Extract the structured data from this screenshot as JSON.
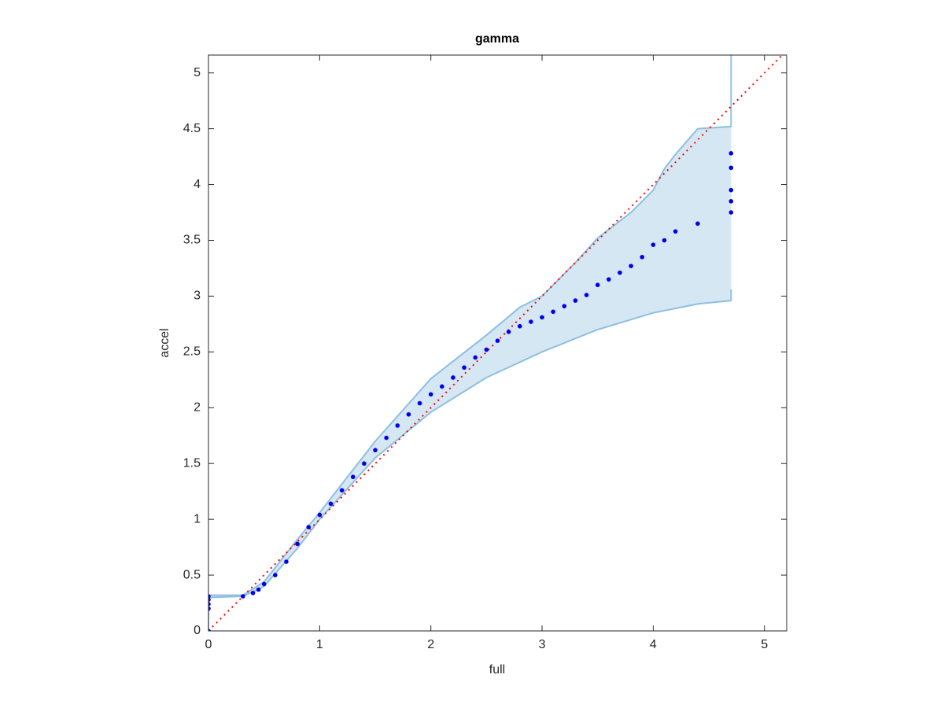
{
  "chart_data": {
    "type": "scatter",
    "title": "gamma",
    "xlabel": "full",
    "ylabel": "accel",
    "xlim": [
      0,
      5.2
    ],
    "ylim": [
      0,
      5.16
    ],
    "xticks": [
      0,
      1,
      2,
      3,
      4,
      5
    ],
    "yticks": [
      0,
      0.5,
      1,
      1.5,
      2,
      2.5,
      3,
      3.5,
      4,
      4.5,
      5
    ],
    "points": {
      "color": "#0000ee",
      "x": [
        0,
        0,
        0,
        0,
        0,
        0.31,
        0.4,
        0.45,
        0.5,
        0.6,
        0.7,
        0.8,
        0.9,
        1.0,
        1.1,
        1.2,
        1.3,
        1.4,
        1.5,
        1.6,
        1.7,
        1.8,
        1.9,
        2.0,
        2.1,
        2.2,
        2.3,
        2.4,
        2.5,
        2.6,
        2.7,
        2.8,
        2.9,
        3.0,
        3.1,
        3.2,
        3.3,
        3.4,
        3.5,
        3.6,
        3.7,
        3.8,
        3.9,
        4.0,
        4.1,
        4.2,
        4.4,
        4.7,
        4.7,
        4.7,
        4.7,
        4.7
      ],
      "y": [
        0,
        0.2,
        0.24,
        0.28,
        0.31,
        0.31,
        0.34,
        0.37,
        0.42,
        0.5,
        0.62,
        0.78,
        0.93,
        1.04,
        1.14,
        1.26,
        1.38,
        1.5,
        1.62,
        1.73,
        1.84,
        1.94,
        2.04,
        2.12,
        2.19,
        2.27,
        2.36,
        2.45,
        2.52,
        2.6,
        2.68,
        2.73,
        2.77,
        2.81,
        2.86,
        2.91,
        2.96,
        3.01,
        3.1,
        3.15,
        3.21,
        3.27,
        3.35,
        3.46,
        3.5,
        3.58,
        3.65,
        3.75,
        3.85,
        3.95,
        4.15,
        4.28
      ]
    },
    "band": {
      "color": "#8dbfe0",
      "fill": "#d6e7f4",
      "upper": {
        "x": [
          0,
          0,
          0.31,
          0.5,
          0.8,
          1.0,
          1.5,
          2.0,
          2.5,
          2.8,
          3.0,
          3.3,
          3.5,
          3.8,
          4.0,
          4.1,
          4.2,
          4.4,
          4.7,
          4.7
        ],
        "y": [
          0,
          0.32,
          0.32,
          0.44,
          0.82,
          1.06,
          1.7,
          2.26,
          2.65,
          2.9,
          3.0,
          3.3,
          3.52,
          3.75,
          3.95,
          4.14,
          4.27,
          4.5,
          4.52,
          5.16
        ]
      },
      "lower": {
        "x": [
          0,
          0,
          0.31,
          0.5,
          0.8,
          1.0,
          1.5,
          2.0,
          2.5,
          3.0,
          3.5,
          4.0,
          4.4,
          4.7,
          4.7
        ],
        "y": [
          0,
          0.3,
          0.31,
          0.4,
          0.74,
          1.0,
          1.55,
          1.96,
          2.27,
          2.5,
          2.7,
          2.85,
          2.93,
          2.96,
          3.06
        ]
      }
    },
    "reference_line": {
      "color": "#ff0000",
      "x": [
        0,
        5.2
      ],
      "y": [
        0,
        5.2
      ]
    }
  }
}
